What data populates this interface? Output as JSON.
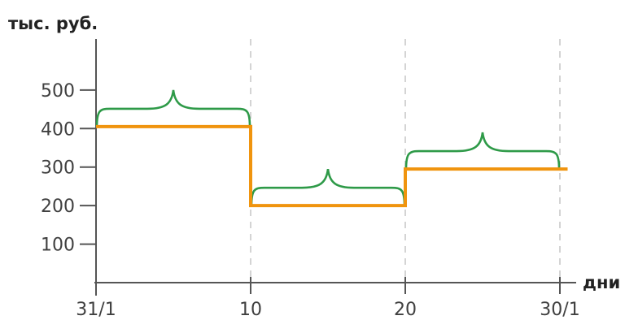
{
  "chart_data": {
    "type": "line",
    "step": true,
    "ylabel": "тыс. руб.",
    "xlabel": "дни",
    "xlim": [
      0,
      30.5
    ],
    "ylim": [
      0,
      530
    ],
    "xticks": [
      {
        "value": 0,
        "label": "31/1"
      },
      {
        "value": 10,
        "label": "10"
      },
      {
        "value": 20,
        "label": "20"
      },
      {
        "value": 30,
        "label": "30/1"
      }
    ],
    "yticks": [
      {
        "value": 100,
        "label": "100"
      },
      {
        "value": 200,
        "label": "200"
      },
      {
        "value": 300,
        "label": "300"
      },
      {
        "value": 400,
        "label": "400"
      },
      {
        "value": 500,
        "label": "500"
      }
    ],
    "vertical_gridlines": [
      10,
      20,
      30
    ],
    "series": [
      {
        "color": "#F0940E",
        "segments": [
          {
            "x_start": 0,
            "x_end": 10,
            "y": 405
          },
          {
            "x_start": 10,
            "x_end": 20,
            "y": 200
          },
          {
            "x_start": 20,
            "x_end": 30.5,
            "y": 295
          }
        ]
      }
    ],
    "braces": [
      {
        "x_start": 0,
        "x_end": 10,
        "color": "#2E9A48"
      },
      {
        "x_start": 10,
        "x_end": 20,
        "color": "#2E9A48"
      },
      {
        "x_start": 20,
        "x_end": 30,
        "color": "#2E9A48"
      }
    ]
  }
}
